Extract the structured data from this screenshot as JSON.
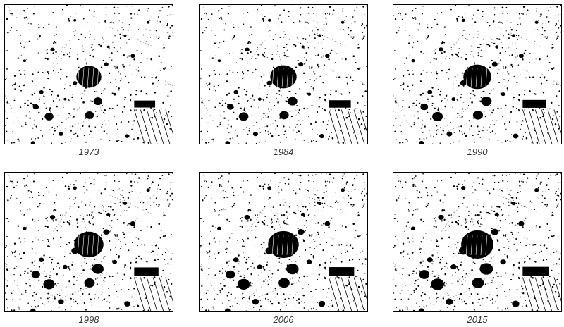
{
  "panels": [
    {
      "year": "1973",
      "growth": 0.0
    },
    {
      "year": "1984",
      "growth": 0.2
    },
    {
      "year": "1990",
      "growth": 0.4
    },
    {
      "year": "1998",
      "growth": 0.6
    },
    {
      "year": "2006",
      "growth": 0.8
    },
    {
      "year": "2015",
      "growth": 1.0
    }
  ],
  "colors": {
    "built_up": "#000000",
    "background": "#ffffff",
    "caption": "#333333"
  }
}
